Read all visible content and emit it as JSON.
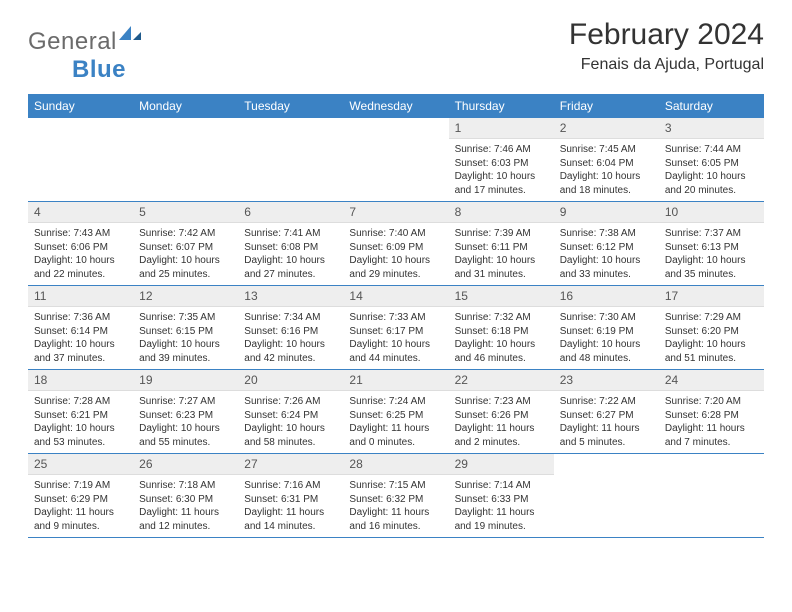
{
  "logo": {
    "text_gray": "General",
    "text_blue": "Blue"
  },
  "title": "February 2024",
  "location": "Fenais da Ajuda, Portugal",
  "colors": {
    "header_bg": "#3b82c4",
    "header_text": "#ffffff",
    "date_bg": "#eeeeee",
    "border": "#3b82c4",
    "logo_gray": "#6b6b6b",
    "logo_blue": "#3b82c4"
  },
  "day_headers": [
    "Sunday",
    "Monday",
    "Tuesday",
    "Wednesday",
    "Thursday",
    "Friday",
    "Saturday"
  ],
  "weeks": [
    [
      {
        "date": "",
        "empty": true
      },
      {
        "date": "",
        "empty": true
      },
      {
        "date": "",
        "empty": true
      },
      {
        "date": "",
        "empty": true
      },
      {
        "date": "1",
        "sunrise": "Sunrise: 7:46 AM",
        "sunset": "Sunset: 6:03 PM",
        "daylight": "Daylight: 10 hours and 17 minutes."
      },
      {
        "date": "2",
        "sunrise": "Sunrise: 7:45 AM",
        "sunset": "Sunset: 6:04 PM",
        "daylight": "Daylight: 10 hours and 18 minutes."
      },
      {
        "date": "3",
        "sunrise": "Sunrise: 7:44 AM",
        "sunset": "Sunset: 6:05 PM",
        "daylight": "Daylight: 10 hours and 20 minutes."
      }
    ],
    [
      {
        "date": "4",
        "sunrise": "Sunrise: 7:43 AM",
        "sunset": "Sunset: 6:06 PM",
        "daylight": "Daylight: 10 hours and 22 minutes."
      },
      {
        "date": "5",
        "sunrise": "Sunrise: 7:42 AM",
        "sunset": "Sunset: 6:07 PM",
        "daylight": "Daylight: 10 hours and 25 minutes."
      },
      {
        "date": "6",
        "sunrise": "Sunrise: 7:41 AM",
        "sunset": "Sunset: 6:08 PM",
        "daylight": "Daylight: 10 hours and 27 minutes."
      },
      {
        "date": "7",
        "sunrise": "Sunrise: 7:40 AM",
        "sunset": "Sunset: 6:09 PM",
        "daylight": "Daylight: 10 hours and 29 minutes."
      },
      {
        "date": "8",
        "sunrise": "Sunrise: 7:39 AM",
        "sunset": "Sunset: 6:11 PM",
        "daylight": "Daylight: 10 hours and 31 minutes."
      },
      {
        "date": "9",
        "sunrise": "Sunrise: 7:38 AM",
        "sunset": "Sunset: 6:12 PM",
        "daylight": "Daylight: 10 hours and 33 minutes."
      },
      {
        "date": "10",
        "sunrise": "Sunrise: 7:37 AM",
        "sunset": "Sunset: 6:13 PM",
        "daylight": "Daylight: 10 hours and 35 minutes."
      }
    ],
    [
      {
        "date": "11",
        "sunrise": "Sunrise: 7:36 AM",
        "sunset": "Sunset: 6:14 PM",
        "daylight": "Daylight: 10 hours and 37 minutes."
      },
      {
        "date": "12",
        "sunrise": "Sunrise: 7:35 AM",
        "sunset": "Sunset: 6:15 PM",
        "daylight": "Daylight: 10 hours and 39 minutes."
      },
      {
        "date": "13",
        "sunrise": "Sunrise: 7:34 AM",
        "sunset": "Sunset: 6:16 PM",
        "daylight": "Daylight: 10 hours and 42 minutes."
      },
      {
        "date": "14",
        "sunrise": "Sunrise: 7:33 AM",
        "sunset": "Sunset: 6:17 PM",
        "daylight": "Daylight: 10 hours and 44 minutes."
      },
      {
        "date": "15",
        "sunrise": "Sunrise: 7:32 AM",
        "sunset": "Sunset: 6:18 PM",
        "daylight": "Daylight: 10 hours and 46 minutes."
      },
      {
        "date": "16",
        "sunrise": "Sunrise: 7:30 AM",
        "sunset": "Sunset: 6:19 PM",
        "daylight": "Daylight: 10 hours and 48 minutes."
      },
      {
        "date": "17",
        "sunrise": "Sunrise: 7:29 AM",
        "sunset": "Sunset: 6:20 PM",
        "daylight": "Daylight: 10 hours and 51 minutes."
      }
    ],
    [
      {
        "date": "18",
        "sunrise": "Sunrise: 7:28 AM",
        "sunset": "Sunset: 6:21 PM",
        "daylight": "Daylight: 10 hours and 53 minutes."
      },
      {
        "date": "19",
        "sunrise": "Sunrise: 7:27 AM",
        "sunset": "Sunset: 6:23 PM",
        "daylight": "Daylight: 10 hours and 55 minutes."
      },
      {
        "date": "20",
        "sunrise": "Sunrise: 7:26 AM",
        "sunset": "Sunset: 6:24 PM",
        "daylight": "Daylight: 10 hours and 58 minutes."
      },
      {
        "date": "21",
        "sunrise": "Sunrise: 7:24 AM",
        "sunset": "Sunset: 6:25 PM",
        "daylight": "Daylight: 11 hours and 0 minutes."
      },
      {
        "date": "22",
        "sunrise": "Sunrise: 7:23 AM",
        "sunset": "Sunset: 6:26 PM",
        "daylight": "Daylight: 11 hours and 2 minutes."
      },
      {
        "date": "23",
        "sunrise": "Sunrise: 7:22 AM",
        "sunset": "Sunset: 6:27 PM",
        "daylight": "Daylight: 11 hours and 5 minutes."
      },
      {
        "date": "24",
        "sunrise": "Sunrise: 7:20 AM",
        "sunset": "Sunset: 6:28 PM",
        "daylight": "Daylight: 11 hours and 7 minutes."
      }
    ],
    [
      {
        "date": "25",
        "sunrise": "Sunrise: 7:19 AM",
        "sunset": "Sunset: 6:29 PM",
        "daylight": "Daylight: 11 hours and 9 minutes."
      },
      {
        "date": "26",
        "sunrise": "Sunrise: 7:18 AM",
        "sunset": "Sunset: 6:30 PM",
        "daylight": "Daylight: 11 hours and 12 minutes."
      },
      {
        "date": "27",
        "sunrise": "Sunrise: 7:16 AM",
        "sunset": "Sunset: 6:31 PM",
        "daylight": "Daylight: 11 hours and 14 minutes."
      },
      {
        "date": "28",
        "sunrise": "Sunrise: 7:15 AM",
        "sunset": "Sunset: 6:32 PM",
        "daylight": "Daylight: 11 hours and 16 minutes."
      },
      {
        "date": "29",
        "sunrise": "Sunrise: 7:14 AM",
        "sunset": "Sunset: 6:33 PM",
        "daylight": "Daylight: 11 hours and 19 minutes."
      },
      {
        "date": "",
        "empty": true
      },
      {
        "date": "",
        "empty": true
      }
    ]
  ]
}
